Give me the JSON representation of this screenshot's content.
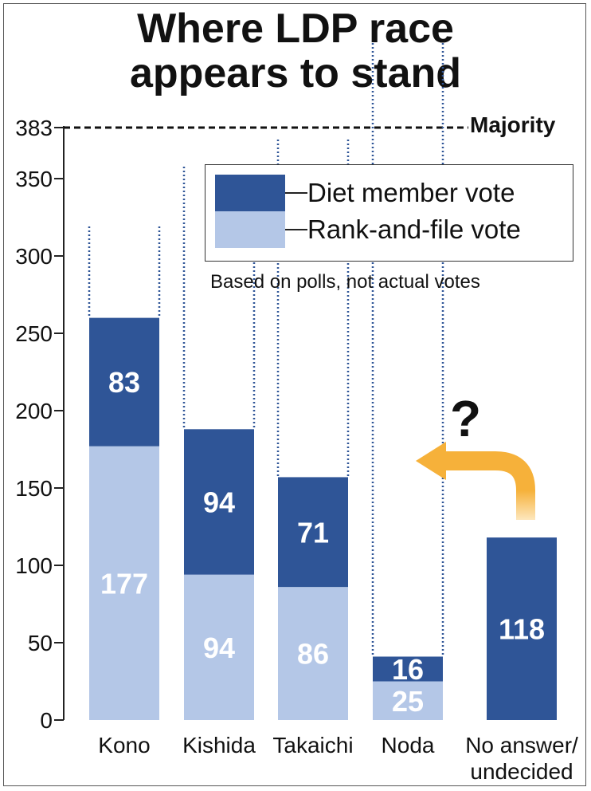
{
  "title_line1": "Where LDP race",
  "title_line2": "appears to stand",
  "legend": {
    "diet": "Diet member vote",
    "rank": "Rank-and-file vote"
  },
  "note": "Based on polls, not actual votes",
  "majority_label": "Majority",
  "question_mark": "?",
  "colors": {
    "diet": "#2f5597",
    "rank": "#b4c7e7",
    "arrow": "#f6b13a"
  },
  "chart_data": {
    "type": "bar",
    "stacked": true,
    "title": "Where LDP race appears to stand",
    "categories": [
      "Kono",
      "Kishida",
      "Takaichi",
      "Noda",
      "No answer/ undecided"
    ],
    "series": [
      {
        "name": "Rank-and-file vote",
        "values": [
          177,
          94,
          86,
          25,
          null
        ]
      },
      {
        "name": "Diet member vote",
        "values": [
          83,
          94,
          71,
          16,
          118
        ]
      }
    ],
    "yticks": [
      0,
      50,
      100,
      150,
      200,
      250,
      300,
      350,
      383
    ],
    "ylim": [
      0,
      383
    ],
    "majority_line": 383,
    "xlabel": "",
    "ylabel": ""
  }
}
